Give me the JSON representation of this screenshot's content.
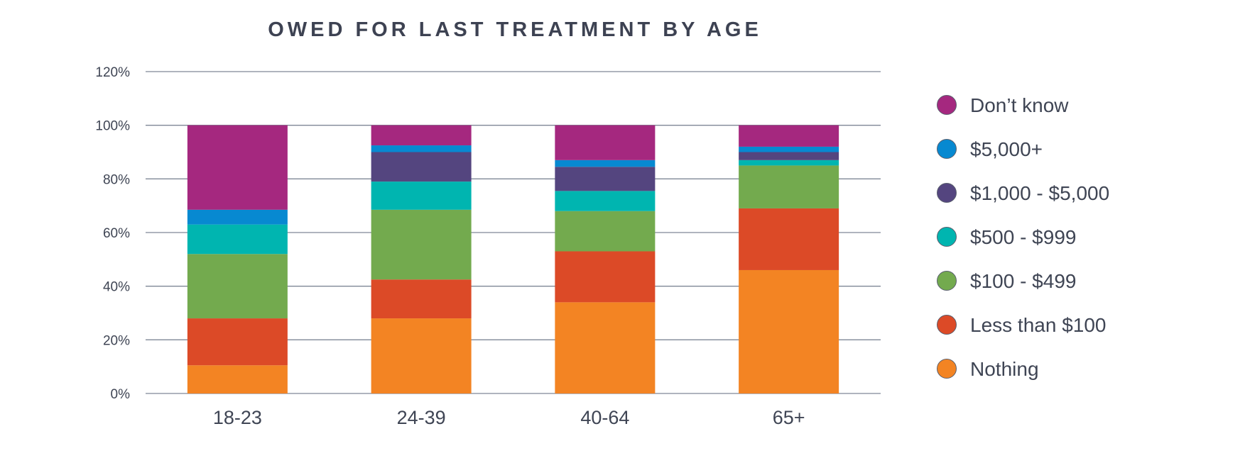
{
  "chart_data": {
    "type": "bar",
    "stacked": true,
    "title": "OWED FOR LAST TREATMENT BY AGE",
    "xlabel": "",
    "ylabel": "",
    "categories": [
      "18-23",
      "24-39",
      "40-64",
      "65+"
    ],
    "ylim": [
      0,
      120
    ],
    "yticks": [
      0,
      20,
      40,
      60,
      80,
      100,
      120
    ],
    "ytick_labels": [
      "0%",
      "20%",
      "40%",
      "60%",
      "80%",
      "100%",
      "120%"
    ],
    "grid": true,
    "legend_position": "right",
    "series": [
      {
        "name": "Nothing",
        "color": "#f38423",
        "values": [
          10.5,
          28,
          34,
          46
        ]
      },
      {
        "name": "Less than $100",
        "color": "#dc4a27",
        "values": [
          17.5,
          14.5,
          19,
          23
        ]
      },
      {
        "name": "$100 - $499",
        "color": "#73aa4e",
        "values": [
          24,
          26,
          15,
          16
        ]
      },
      {
        "name": "$500 - $999",
        "color": "#00b5b0",
        "values": [
          11,
          10.5,
          7.5,
          2
        ]
      },
      {
        "name": "$1,000 - $5,000",
        "color": "#54457f",
        "values": [
          0,
          11,
          9,
          3
        ]
      },
      {
        "name": "$5,000+",
        "color": "#0789d1",
        "values": [
          5.5,
          2.5,
          2.5,
          2
        ]
      },
      {
        "name": "Don't know",
        "color": "#a5287f",
        "values": [
          31.5,
          7.5,
          13,
          8
        ]
      }
    ],
    "legend_labels": [
      "Don’t know",
      "$5,000+",
      "$1,000 - $5,000",
      "$500 - $999",
      "$100 - $499",
      "Less than $100",
      "Nothing"
    ]
  }
}
